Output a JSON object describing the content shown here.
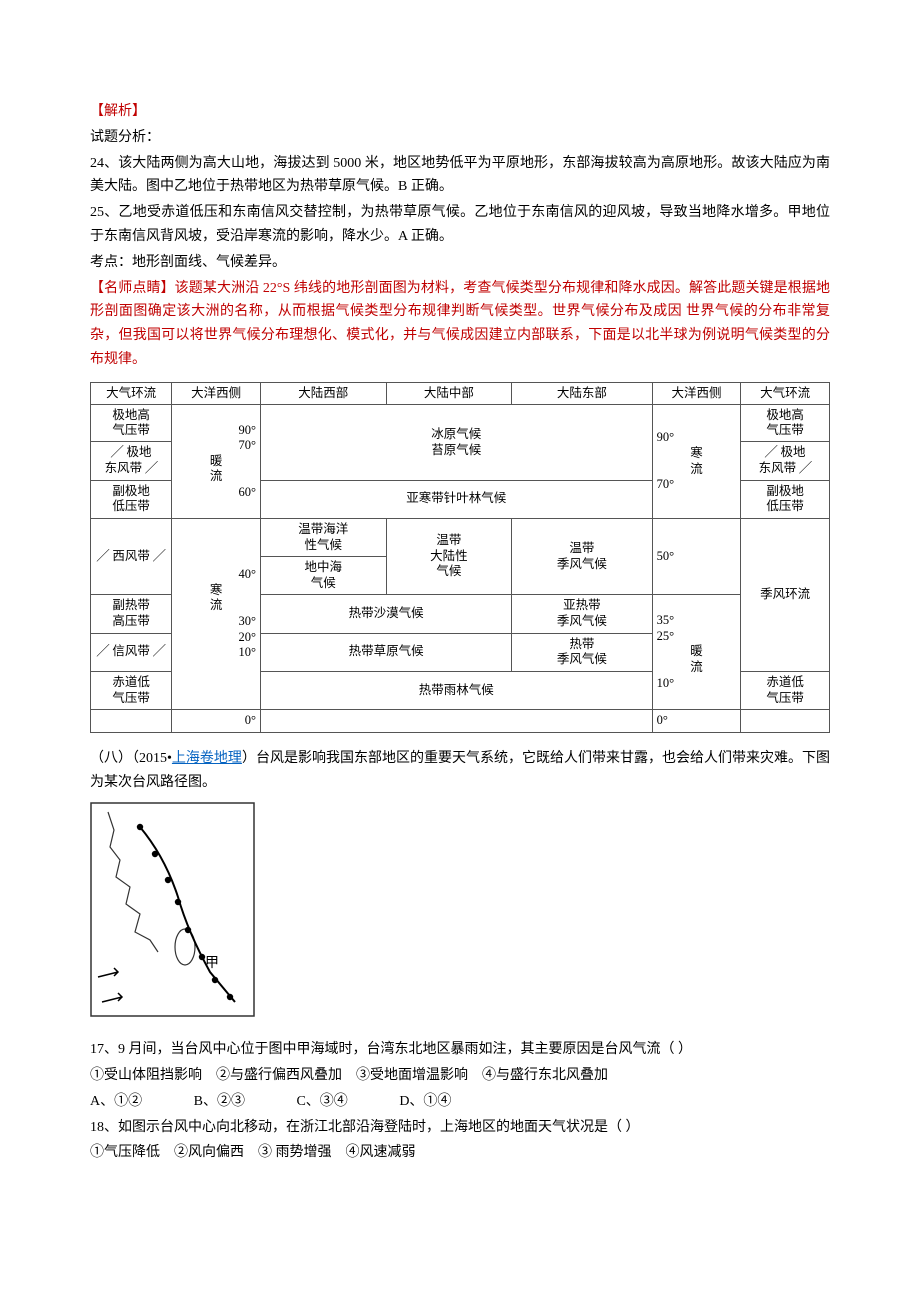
{
  "analysis": {
    "header": "【解析】",
    "intro": "试题分析：",
    "p24": "24、该大陆两侧为高大山地，海拔达到 5000 米，地区地势低平为平原地形，东部海拔较高为高原地形。故该大陆应为南美大陆。图中乙地位于热带地区为热带草原气候。B 正确。",
    "p25": "25、乙地受赤道低压和东南信风交替控制，为热带草原气候。乙地位于东南信风的迎风坡，导致当地降水增多。甲地位于东南信风背风坡，受沿岸寒流的影响，降水少。A 正确。",
    "kaodian": "考点：地形剖面线、气候差异。",
    "tip": "【名师点睛】该题某大洲沿 22°S 纬线的地形剖面图为材料，考查气候类型分布规律和降水成因。解答此题关键是根据地形剖面图确定该大洲的名称，从而根据气候类型分布规律判断气候类型。世界气候分布及成因 世界气候的分布非常复杂，但我国可以将世界气候分布理想化、模式化，并与气候成因建立内部联系，下面是以北半球为例说明气候类型的分布规律。"
  },
  "table": {
    "headers": [
      "大气环流",
      "大洋西侧",
      "大陆西部",
      "大陆中部",
      "大陆东部",
      "大洋西侧",
      "大气环流"
    ],
    "left_belts": [
      "极地高\n气压带",
      "极地\n东风带",
      "副极地\n低压带",
      "西风带",
      "副热带\n高压带",
      "信风带",
      "赤道低\n气压带"
    ],
    "right_belts": [
      "极地高\n气压带",
      "极地\n东风带",
      "副极地\n低压带",
      "季风环流",
      "赤道低\n气压带"
    ],
    "ocean_left": {
      "warm": "暖\n流",
      "cold": "寒\n流"
    },
    "ocean_right": {
      "cold": "寒\n流",
      "warm": "暖\n流"
    },
    "deg_left": [
      "90°",
      "70°",
      "60°",
      "40°",
      "30°",
      "20°",
      "10°",
      "0°"
    ],
    "deg_right": [
      "90°",
      "70°",
      "50°",
      "35°",
      "25°",
      "10°",
      "0°"
    ],
    "climates": {
      "ice": "冰原气候\n苔原气候",
      "taiga": "亚寒带针叶林气候",
      "marine": "温带海洋\n性气候",
      "continental": "温带\n大陆性\n气候",
      "temperate_monsoon": "温带\n季风气候",
      "med": "地中海\n气候",
      "subtrop": "亚热带\n季风气候",
      "desert": "热带沙漠气候",
      "trop_monsoon": "热带\n季风气候",
      "savanna": "热带草原气候",
      "rainforest": "热带雨林气候"
    }
  },
  "section8": {
    "prefix": "（八）（2015•",
    "link_text": "上海卷地理",
    "suffix": "）台风是影响我国东部地区的重要天气系统，它既给人们带来甘露，也会给人们带来灾难。下图为某次台风路径图。",
    "map_label": "甲"
  },
  "q17": {
    "stem": "17、9 月间，当台风中心位于图中甲海域时，台湾东北地区暴雨如注，其主要原因是台风气流（   ）",
    "options_line": "①受山体阻挡影响　②与盛行偏西风叠加　③受地面增温影响　④与盛行东北风叠加",
    "choices": {
      "A": "A、①②",
      "B": "B、②③",
      "C": "C、③④",
      "D": "D、①④"
    }
  },
  "q18": {
    "stem": "18、如图示台风中心向北移动，在浙江北部沿海登陆时，上海地区的地面天气状况是（   ）",
    "options_line": "①气压降低　②风向偏西　③ 雨势增强　④风速减弱"
  }
}
